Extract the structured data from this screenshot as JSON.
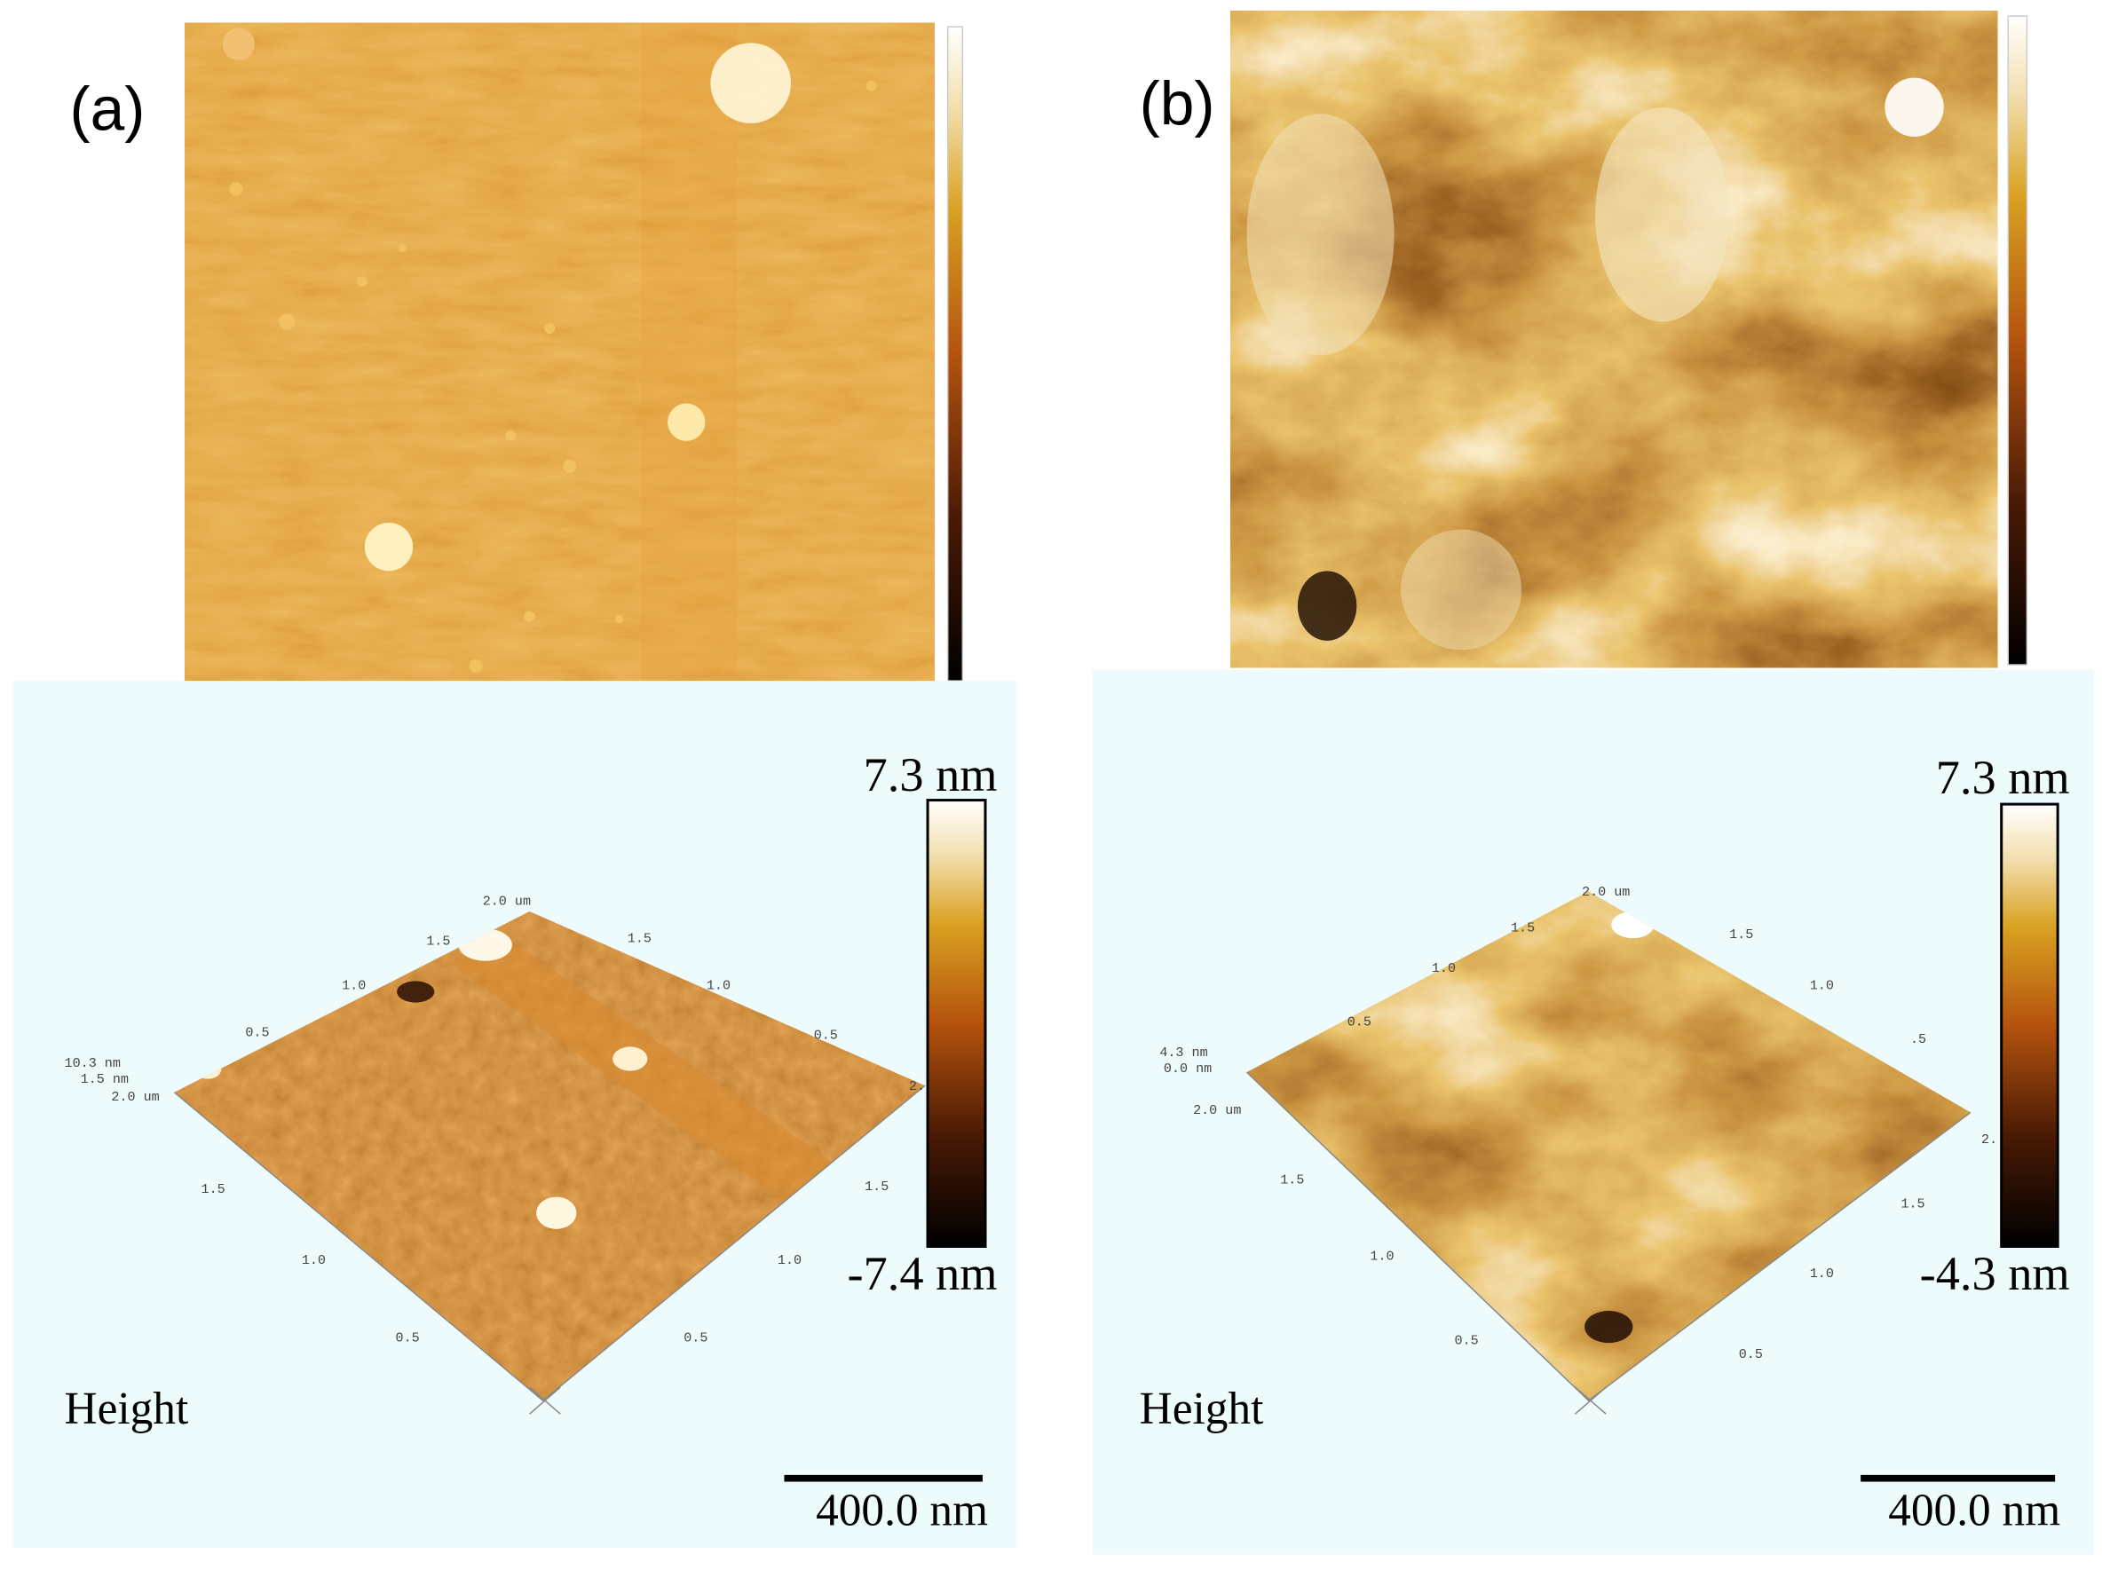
{
  "panels": [
    {
      "label": "(a)",
      "surface_3d": {
        "max_label": "7.3 nm",
        "min_label": "-7.4 nm",
        "channel": "Height",
        "scale_bar": "400.0 nm",
        "axis_labels": [
          "2.0 um",
          "1.5",
          "1.0",
          "0.5",
          "1.5",
          "1.0",
          "0.5",
          "2.",
          "10.3 nm",
          "1.5 nm",
          "2.0 um",
          "1.5",
          "1.0",
          "0.5",
          "1.5",
          "1.0",
          "0.5"
        ]
      }
    },
    {
      "label": "(b)",
      "surface_3d": {
        "max_label": "7.3 nm",
        "min_label": "-4.3 nm",
        "channel": "Height",
        "scale_bar": "400.0 nm",
        "axis_labels": [
          "2.0 um",
          "1.5",
          "1.0",
          "0.5",
          "1.5",
          "1.0",
          ".5",
          "2.",
          "4.3 nm",
          "0.0 nm",
          "2.0 um",
          "1.5",
          "1.0",
          "0.5",
          "1.5",
          "1.0",
          "0.5"
        ]
      }
    }
  ]
}
